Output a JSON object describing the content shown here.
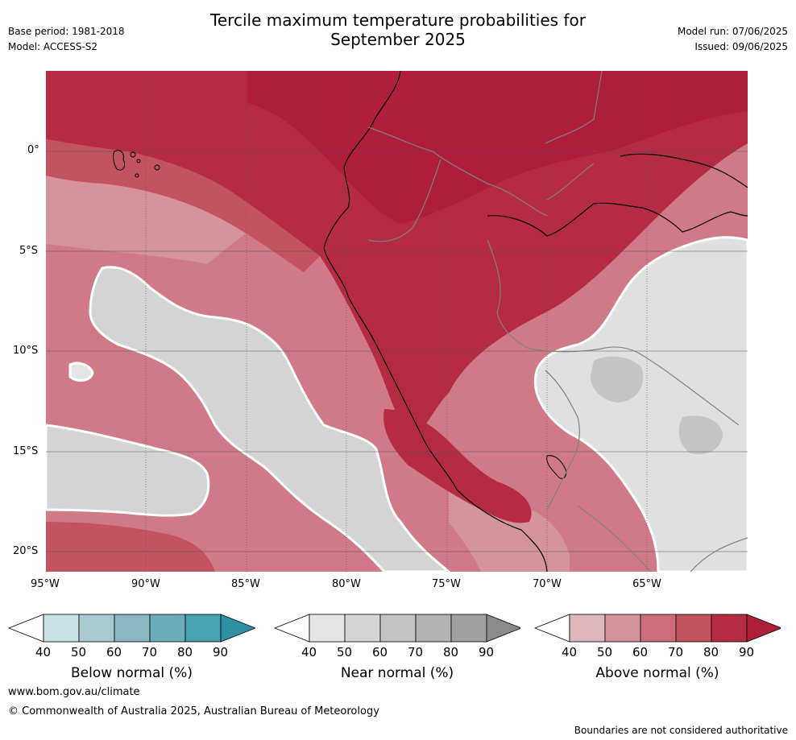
{
  "title": {
    "line1": "Tercile maximum temperature probabilities for",
    "line2": "September 2025"
  },
  "meta_left": {
    "base_period": "Base period: 1981-2018",
    "model": "Model: ACCESS-S2"
  },
  "meta_right": {
    "model_run": "Model run: 07/06/2025",
    "issued": "Issued: 09/06/2025"
  },
  "map": {
    "variable": "Tercile maximum temperature probabilities",
    "lat_labels": [
      "0°",
      "5°S",
      "10°S",
      "15°S",
      "20°S"
    ],
    "lon_labels": [
      "95°W",
      "90°W",
      "85°W",
      "80°W",
      "75°W",
      "70°W",
      "65°W"
    ],
    "lat_range": [
      -21,
      4
    ],
    "lon_range": [
      -95,
      -60
    ],
    "gridlines": true,
    "dominant_category": "Above normal"
  },
  "colorbars": [
    {
      "title": "Below normal (%)",
      "ticks": [
        "40",
        "50",
        "60",
        "70",
        "80",
        "90"
      ],
      "colors": [
        "#ffffff",
        "#c8e1e5",
        "#a8cad0",
        "#89b8c3",
        "#6aadb8",
        "#46a1b1",
        "#2f8fa3"
      ]
    },
    {
      "title": "Near normal (%)",
      "ticks": [
        "40",
        "50",
        "60",
        "70",
        "80",
        "90"
      ],
      "colors": [
        "#ffffff",
        "#e5e5e5",
        "#d4d4d4",
        "#c4c4c4",
        "#b3b3b3",
        "#a0a0a0",
        "#8a8a8a"
      ]
    },
    {
      "title": "Above normal (%)",
      "ticks": [
        "40",
        "50",
        "60",
        "70",
        "80",
        "90"
      ],
      "colors": [
        "#ffffff",
        "#e0b6bd",
        "#d5939c",
        "#cd6f7b",
        "#c2535f",
        "#b52c42",
        "#b01f3a"
      ]
    }
  ],
  "footer": {
    "website": "www.bom.gov.au/climate",
    "copyright": "© Commonwealth of Australia 2025, Australian Bureau of Meteorology",
    "disclaimer": "Boundaries are not considered authoritative"
  }
}
